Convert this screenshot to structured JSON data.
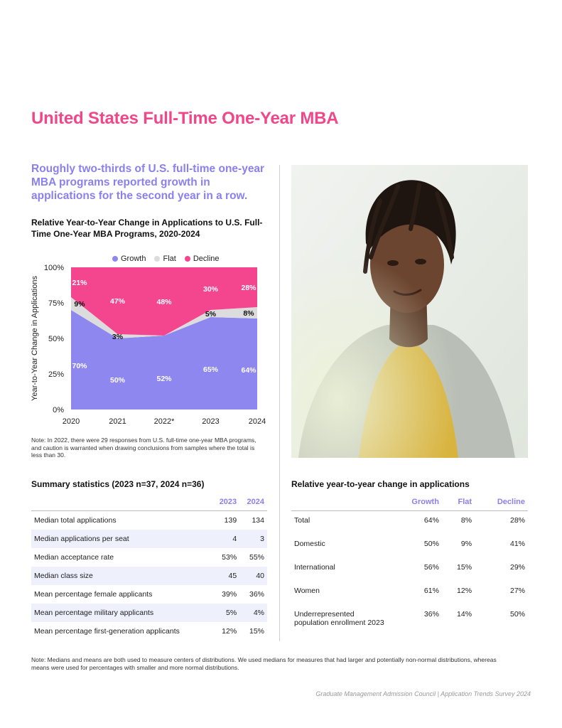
{
  "page_title": "United States Full-Time One-Year MBA",
  "headline": "Roughly two-thirds of U.S. full-time one-year MBA programs reported growth in applications for the second year in a row.",
  "chart_data": {
    "type": "area",
    "title": "Relative Year-to-Year Change in Applications to U.S. Full-Time One-Year MBA Programs, 2020-2024",
    "xlabel": "",
    "ylabel": "Year-to-Year Change in Applications",
    "categories": [
      "2020",
      "2021",
      "2022*",
      "2023",
      "2024"
    ],
    "ylim": [
      0,
      100
    ],
    "yticks": [
      "0%",
      "25%",
      "50%",
      "75%",
      "100%"
    ],
    "legend_position": "top",
    "series": [
      {
        "name": "Growth",
        "color": "#8f87f0",
        "values": [
          70,
          50,
          52,
          65,
          64
        ],
        "labels": [
          "70%",
          "50%",
          "52%",
          "65%",
          "64%"
        ]
      },
      {
        "name": "Flat",
        "color": "#dcdcdc",
        "values": [
          9,
          3,
          0,
          5,
          8
        ],
        "labels": [
          "9%",
          "3%",
          "",
          "5%",
          "8%"
        ]
      },
      {
        "name": "Decline",
        "color": "#f4458f",
        "values": [
          21,
          47,
          48,
          30,
          28
        ],
        "labels": [
          "21%",
          "47%",
          "48%",
          "30%",
          "28%"
        ]
      }
    ]
  },
  "chart_note": "Note: In 2022, there were 29 responses from U.S. full-time one-year MBA programs, and caution is warranted when drawing conclusions from samples where the total is less than 30.",
  "summary": {
    "title": "Summary statistics (2023 n=37, 2024 n=36)",
    "headers": [
      "",
      "2023",
      "2024"
    ],
    "rows": [
      {
        "label": "Median total applications",
        "v2023": "139",
        "v2024": "134"
      },
      {
        "label": "Median applications per seat",
        "v2023": "4",
        "v2024": "3"
      },
      {
        "label": "Median acceptance rate",
        "v2023": "53%",
        "v2024": "55%"
      },
      {
        "label": "Median class size",
        "v2023": "45",
        "v2024": "40"
      },
      {
        "label": "Mean percentage female applicants",
        "v2023": "39%",
        "v2024": "36%"
      },
      {
        "label": "Mean percentage military applicants",
        "v2023": "5%",
        "v2024": "4%"
      },
      {
        "label": "Mean percentage first-generation applicants",
        "v2023": "12%",
        "v2024": "15%"
      }
    ]
  },
  "relative": {
    "title": "Relative year-to-year change in applications",
    "headers": [
      "",
      "Growth",
      "Flat",
      "Decline"
    ],
    "rows": [
      {
        "label": "Total",
        "growth": "64%",
        "flat": "8%",
        "decline": "28%"
      },
      {
        "label": "Domestic",
        "growth": "50%",
        "flat": "9%",
        "decline": "41%"
      },
      {
        "label": "International",
        "growth": "56%",
        "flat": "15%",
        "decline": "29%"
      },
      {
        "label": "Women",
        "growth": "61%",
        "flat": "12%",
        "decline": "27%"
      },
      {
        "label": "Underrepresented population enrollment 2023",
        "growth": "36%",
        "flat": "14%",
        "decline": "50%"
      }
    ]
  },
  "footnote": "Note: Medians and means are both used to measure centers of distributions. We used medians for measures that had larger and potentially non-normal distributions, whereas means were used for percentages with smaller and more normal distributions.",
  "footer": "Graduate Management Admission Council | Application Trends Survey 2024"
}
